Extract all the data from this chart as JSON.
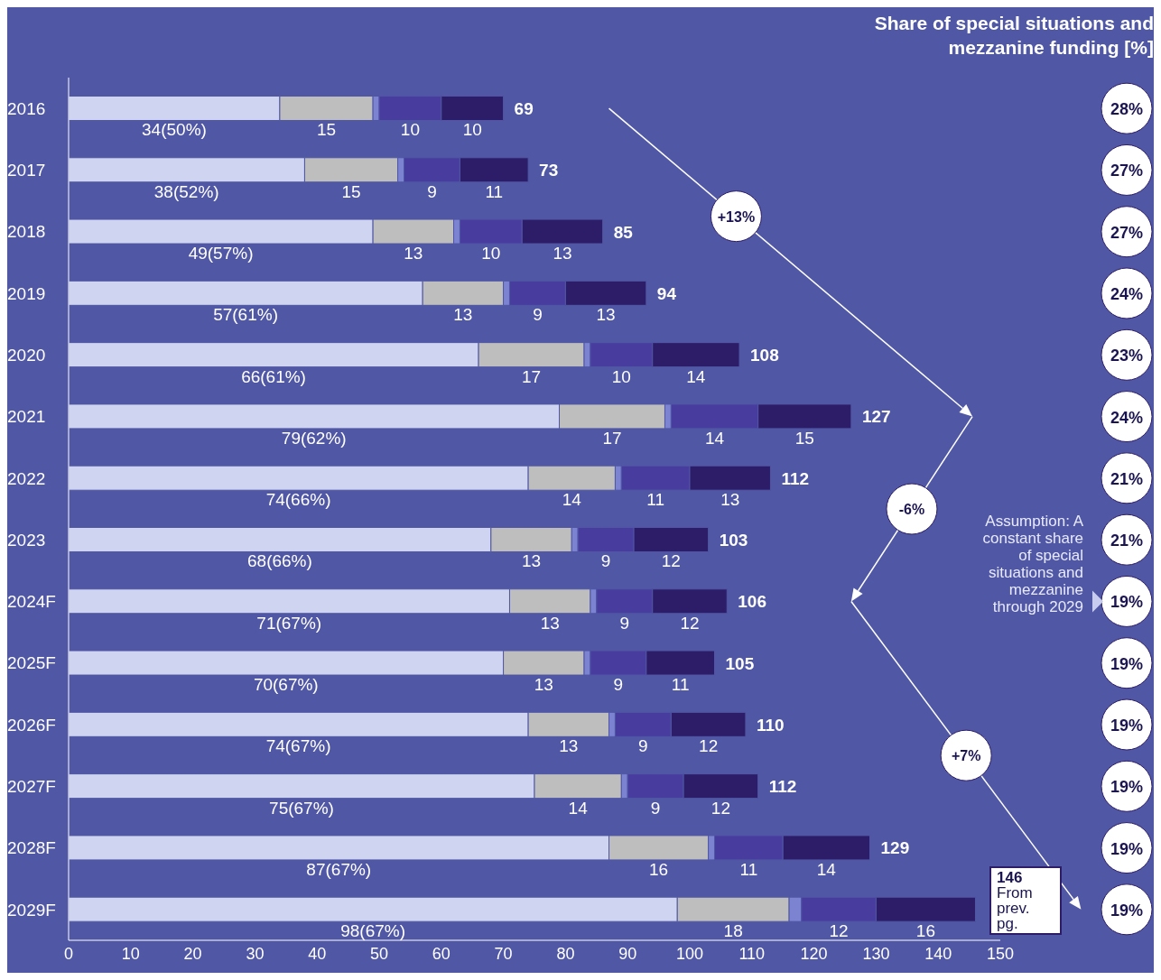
{
  "chart_data": {
    "type": "bar",
    "orientation": "horizontal",
    "stacked": true,
    "title": "Share of special situations and mezzanine funding [%]",
    "categories": [
      "2016",
      "2017",
      "2018",
      "2019",
      "2020",
      "2021",
      "2022",
      "2023",
      "2024F",
      "2025F",
      "2026F",
      "2027F",
      "2028F",
      "2029F"
    ],
    "series": [
      {
        "color": "#cfd5f0",
        "values": [
          34,
          38,
          49,
          57,
          66,
          79,
          74,
          68,
          71,
          70,
          74,
          75,
          87,
          98
        ],
        "value_labels": [
          "34(50%)",
          "38(52%)",
          "49(57%)",
          "57(61%)",
          "66(61%)",
          "79(62%)",
          "74(66%)",
          "68(66%)",
          "71(67%)",
          "70(67%)",
          "74(67%)",
          "75(67%)",
          "87(67%)",
          "98(67%)"
        ]
      },
      {
        "color": "#bebebe",
        "values": [
          15,
          15,
          13,
          13,
          17,
          17,
          14,
          13,
          13,
          13,
          13,
          14,
          16,
          18
        ],
        "value_labels": [
          "15",
          "15",
          "13",
          "13",
          "17",
          "17",
          "14",
          "13",
          "13",
          "13",
          "13",
          "14",
          "16",
          "18"
        ]
      },
      {
        "color": "#7c84d2",
        "values": [
          1,
          1,
          1,
          1,
          1,
          1,
          1,
          1,
          1,
          1,
          1,
          1,
          1,
          2
        ]
      },
      {
        "color": "#483d9e",
        "values": [
          10,
          9,
          10,
          9,
          10,
          14,
          11,
          9,
          9,
          9,
          9,
          9,
          11,
          12
        ],
        "value_labels": [
          "10",
          "9",
          "10",
          "9",
          "10",
          "14",
          "11",
          "9",
          "9",
          "9",
          "9",
          "9",
          "11",
          "12"
        ]
      },
      {
        "color": "#2d1d68",
        "values": [
          10,
          11,
          13,
          13,
          14,
          15,
          13,
          12,
          12,
          11,
          12,
          12,
          14,
          16
        ],
        "value_labels": [
          "10",
          "11",
          "13",
          "13",
          "14",
          "15",
          "13",
          "12",
          "12",
          "11",
          "12",
          "12",
          "14",
          "16"
        ]
      }
    ],
    "totals": [
      "69",
      "73",
      "85",
      "94",
      "108",
      "127",
      "112",
      "103",
      "106",
      "105",
      "110",
      "112",
      "129",
      null
    ],
    "xlim": [
      0,
      150
    ],
    "xticks": [
      0,
      10,
      20,
      30,
      40,
      50,
      60,
      70,
      80,
      90,
      100,
      110,
      120,
      130,
      140,
      150
    ],
    "annotations": [
      "28%",
      "27%",
      "27%",
      "24%",
      "23%",
      "24%",
      "21%",
      "21%",
      "19%",
      "19%",
      "19%",
      "19%",
      "19%",
      "19%",
      "+13%",
      "-6%",
      "+7%",
      "Assumption: A constant share of special situations and mezzanine through 2029",
      "146",
      "From prev. pg."
    ]
  }
}
